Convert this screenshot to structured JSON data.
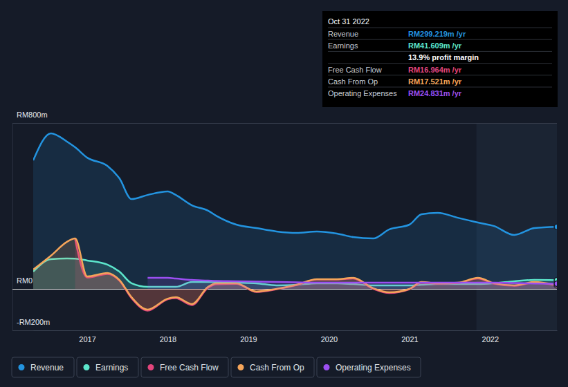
{
  "chart_data": {
    "type": "area",
    "x": [
      2016.33,
      2016.55,
      2016.75,
      2016.85,
      2017.0,
      2017.25,
      2017.4,
      2017.55,
      2017.75,
      2018.0,
      2018.1,
      2018.3,
      2018.5,
      2018.6,
      2018.85,
      2019.1,
      2019.35,
      2019.6,
      2019.85,
      2020.1,
      2020.3,
      2020.55,
      2020.75,
      2021.0,
      2021.15,
      2021.35,
      2021.6,
      2021.85,
      2022.05,
      2022.3,
      2022.55,
      2022.83
    ],
    "xlim": [
      2016.33,
      2022.83
    ],
    "xticks": [
      2017,
      2018,
      2019,
      2020,
      2021,
      2022
    ],
    "ylim": [
      -200,
      800
    ],
    "yticks": [
      {
        "value": -200,
        "label": "-RM200m"
      },
      {
        "value": 0,
        "label": "RM0"
      },
      {
        "value": 800,
        "label": "RM800m"
      }
    ],
    "grid": true,
    "legend": "bottom",
    "series": [
      {
        "name": "Revenue",
        "color": "#2394e0",
        "values": [
          620,
          750,
          710,
          683,
          633,
          593,
          533,
          433,
          453,
          470,
          453,
          403,
          377,
          353,
          310,
          293,
          277,
          270,
          277,
          267,
          250,
          243,
          287,
          310,
          360,
          367,
          343,
          320,
          303,
          260,
          293,
          299.219
        ]
      },
      {
        "name": "Earnings",
        "color": "#5ce6cc",
        "values": [
          83,
          143,
          147,
          146,
          137,
          117,
          83,
          27,
          10,
          10,
          10,
          33,
          33,
          33,
          30,
          27,
          17,
          20,
          27,
          27,
          23,
          17,
          17,
          17,
          20,
          23,
          23,
          23,
          27,
          37,
          43,
          41.609
        ]
      },
      {
        "name": "Free Cash Flow",
        "color": "#e2457c",
        "values": [
          null,
          null,
          null,
          240,
          55,
          72,
          40,
          -45,
          -105,
          -50,
          -45,
          -78,
          5,
          22,
          24,
          -15,
          -2,
          18,
          45,
          45,
          50,
          0,
          -20,
          -2,
          30,
          25,
          28,
          50,
          25,
          15,
          30,
          16.964
        ]
      },
      {
        "name": "Cash From Op",
        "color": "#f5a55a",
        "values": [
          93,
          160,
          227,
          243,
          60,
          77,
          43,
          -40,
          -100,
          -47,
          -40,
          -73,
          10,
          27,
          27,
          -13,
          0,
          20,
          47,
          47,
          53,
          3,
          -17,
          0,
          33,
          27,
          30,
          53,
          27,
          17,
          33,
          17.521
        ]
      },
      {
        "name": "Operating Expenses",
        "color": "#9b4ff2",
        "values": [
          null,
          null,
          null,
          null,
          null,
          null,
          null,
          null,
          53,
          53,
          50,
          43,
          40,
          38,
          37,
          35,
          33,
          32,
          30,
          30,
          30,
          30,
          30,
          30,
          30,
          30,
          30,
          30,
          30,
          28,
          26,
          24.831
        ]
      }
    ],
    "annotation": {
      "title": "Oct 31 2022",
      "rows": [
        {
          "label": "Revenue",
          "value": "RM299.219m /yr"
        },
        {
          "label": "Earnings",
          "value": "RM41.609m /yr"
        },
        {
          "label": "Free Cash Flow",
          "value": "RM16.964m /yr"
        },
        {
          "label": "Cash From Op",
          "value": "RM17.521m /yr"
        },
        {
          "label": "Operating Expenses",
          "value": "RM24.831m /yr"
        }
      ],
      "note": "13.9% profit margin"
    }
  }
}
